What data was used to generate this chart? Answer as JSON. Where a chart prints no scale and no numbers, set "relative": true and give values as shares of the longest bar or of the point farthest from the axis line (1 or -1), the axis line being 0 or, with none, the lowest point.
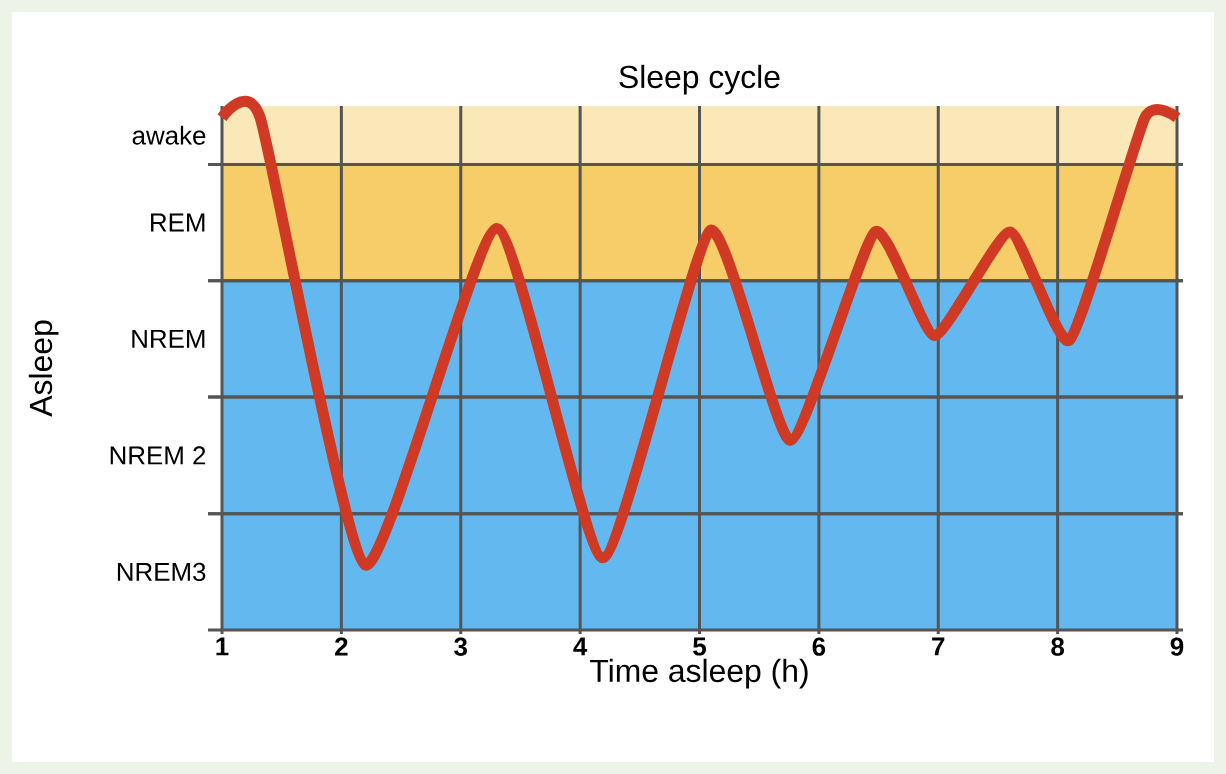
{
  "chart_data": {
    "type": "line",
    "title": "Sleep cycle",
    "xlabel": "Time asleep (h)",
    "ylabel": "Asleep",
    "relative": true,
    "x": [
      1,
      1.32,
      2.2,
      3.3,
      4.19,
      5.09,
      5.76,
      6.47,
      6.97,
      7.6,
      8.1,
      8.73,
      9
    ],
    "series": [
      {
        "color": "#d03a25",
        "values": [
          1,
          1,
          0.127,
          0.784,
          0.141,
          0.78,
          0.37,
          0.777,
          0.575,
          0.777,
          0.566,
          1,
          1
        ]
      }
    ],
    "xlim": [
      1,
      9
    ],
    "xticks": [
      1,
      2,
      3,
      4,
      5,
      6,
      7,
      8,
      9
    ],
    "bands": [
      {
        "axis": "y",
        "from": 0,
        "to": 0.227,
        "color": "#63b9ef",
        "label": "NREM3"
      },
      {
        "axis": "y",
        "from": 0.227,
        "to": 0.455,
        "color": "#63b9ef",
        "label": "NREM 2"
      },
      {
        "axis": "y",
        "from": 0.455,
        "to": 0.682,
        "color": "#63b9ef",
        "label": "NREM"
      },
      {
        "axis": "y",
        "from": 0.682,
        "to": 0.909,
        "color": "#f7cd6a",
        "label": "REM"
      },
      {
        "axis": "y",
        "from": 0.909,
        "to": 1.023,
        "color": "#fbe8b8",
        "label": "awake"
      }
    ],
    "grid": "x",
    "marker": "none",
    "line_style": "solid"
  }
}
